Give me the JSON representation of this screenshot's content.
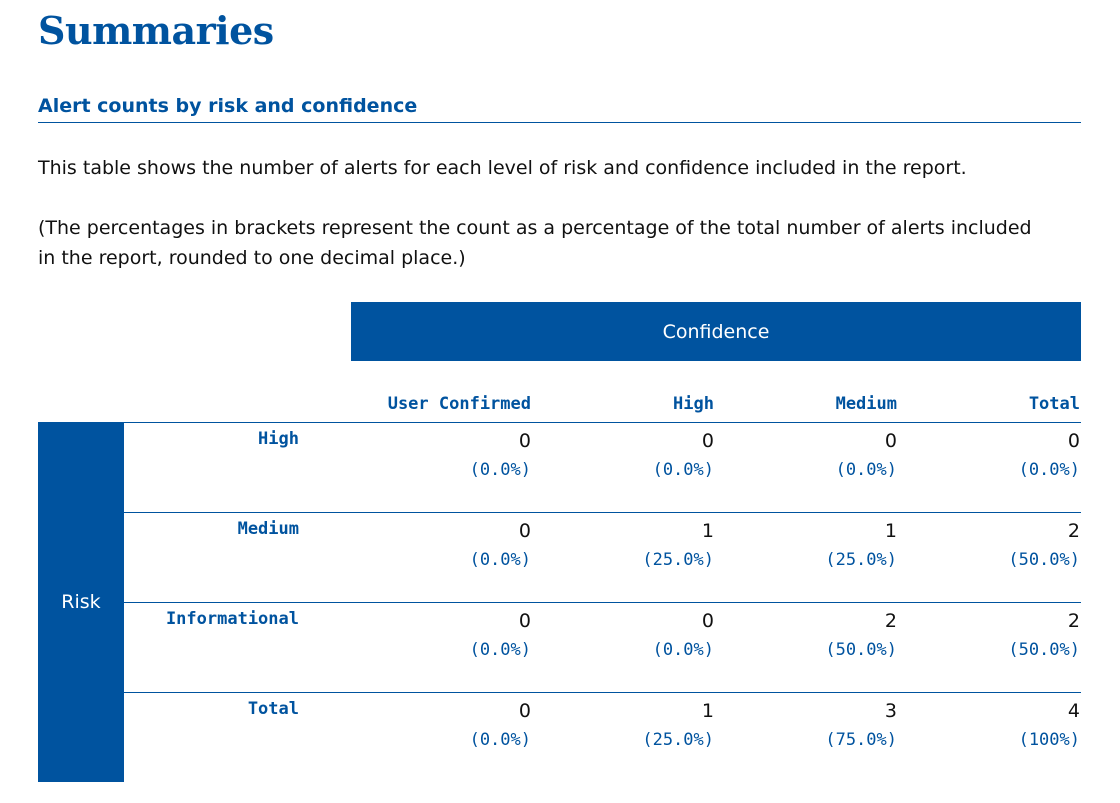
{
  "title": "Summaries",
  "subtitle": "Alert counts by risk and confidence",
  "paragraphs": [
    "This table shows the number of alerts for each level of risk and confidence included in the report.",
    "(The percentages in brackets represent the count as a percentage of the total number of alerts included in the report, rounded to one decimal place.)"
  ],
  "table": {
    "confidence_header": "Confidence",
    "risk_header": "Risk",
    "columns": [
      "User Confirmed",
      "High",
      "Medium",
      "Total"
    ],
    "rows": [
      {
        "label": "High",
        "cells": [
          {
            "count": "0",
            "pct": "(0.0%)"
          },
          {
            "count": "0",
            "pct": "(0.0%)"
          },
          {
            "count": "0",
            "pct": "(0.0%)"
          },
          {
            "count": "0",
            "pct": "(0.0%)"
          }
        ]
      },
      {
        "label": "Medium",
        "cells": [
          {
            "count": "0",
            "pct": "(0.0%)"
          },
          {
            "count": "1",
            "pct": "(25.0%)"
          },
          {
            "count": "1",
            "pct": "(25.0%)"
          },
          {
            "count": "2",
            "pct": "(50.0%)"
          }
        ]
      },
      {
        "label": "Informational",
        "cells": [
          {
            "count": "0",
            "pct": "(0.0%)"
          },
          {
            "count": "0",
            "pct": "(0.0%)"
          },
          {
            "count": "2",
            "pct": "(50.0%)"
          },
          {
            "count": "2",
            "pct": "(50.0%)"
          }
        ]
      },
      {
        "label": "Total",
        "cells": [
          {
            "count": "0",
            "pct": "(0.0%)"
          },
          {
            "count": "1",
            "pct": "(25.0%)"
          },
          {
            "count": "3",
            "pct": "(75.0%)"
          },
          {
            "count": "4",
            "pct": "(100%)"
          }
        ]
      }
    ]
  },
  "colors": {
    "accent": "#00539f",
    "text": "#111111",
    "background": "#ffffff"
  }
}
